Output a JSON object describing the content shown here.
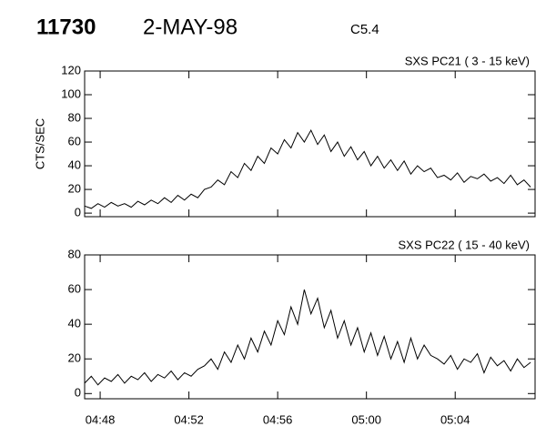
{
  "header": {
    "id": "11730",
    "date": "2-MAY-98",
    "class": "C5.4"
  },
  "chart_data": [
    {
      "type": "line",
      "title": "SXS PC21  (  3 - 15 keV)",
      "ylabel": "CTS/SEC",
      "color": "#000000",
      "x": [
        47.3,
        47.6,
        47.9,
        48.2,
        48.5,
        48.8,
        49.1,
        49.4,
        49.7,
        50.0,
        50.3,
        50.6,
        50.9,
        51.2,
        51.5,
        51.8,
        52.1,
        52.4,
        52.7,
        53.0,
        53.3,
        53.6,
        53.9,
        54.2,
        54.5,
        54.8,
        55.1,
        55.4,
        55.7,
        56.0,
        56.3,
        56.6,
        56.9,
        57.2,
        57.5,
        57.8,
        58.1,
        58.4,
        58.7,
        59.0,
        59.3,
        59.6,
        59.9,
        60.2,
        60.5,
        60.8,
        61.1,
        61.4,
        61.7,
        62.0,
        62.3,
        62.6,
        62.9,
        63.2,
        63.5,
        63.8,
        64.1,
        64.4,
        64.7,
        65.0,
        65.3,
        65.6,
        65.9,
        66.2,
        66.5,
        66.8,
        67.1,
        67.4
      ],
      "values": [
        6,
        4,
        8,
        5,
        9,
        6,
        8,
        5,
        10,
        7,
        11,
        8,
        13,
        9,
        15,
        11,
        16,
        13,
        20,
        22,
        28,
        24,
        35,
        30,
        42,
        36,
        48,
        42,
        55,
        50,
        62,
        55,
        68,
        60,
        70,
        58,
        66,
        52,
        60,
        48,
        56,
        45,
        52,
        40,
        48,
        38,
        45,
        36,
        44,
        33,
        40,
        35,
        38,
        30,
        32,
        28,
        34,
        26,
        31,
        29,
        33,
        27,
        30,
        25,
        32,
        24,
        28,
        22
      ],
      "xlim": [
        47.3,
        67.6
      ],
      "ylim": [
        -3,
        120
      ],
      "xticks": [
        48,
        52,
        56,
        60,
        64
      ],
      "yticks": [
        0,
        20,
        40,
        60,
        80,
        100,
        120
      ]
    },
    {
      "type": "line",
      "title": "SXS PC22  ( 15 - 40 keV)",
      "color": "#000000",
      "x": [
        47.3,
        47.6,
        47.9,
        48.2,
        48.5,
        48.8,
        49.1,
        49.4,
        49.7,
        50.0,
        50.3,
        50.6,
        50.9,
        51.2,
        51.5,
        51.8,
        52.1,
        52.4,
        52.7,
        53.0,
        53.3,
        53.6,
        53.9,
        54.2,
        54.5,
        54.8,
        55.1,
        55.4,
        55.7,
        56.0,
        56.3,
        56.6,
        56.9,
        57.2,
        57.5,
        57.8,
        58.1,
        58.4,
        58.7,
        59.0,
        59.3,
        59.6,
        59.9,
        60.2,
        60.5,
        60.8,
        61.1,
        61.4,
        61.7,
        62.0,
        62.3,
        62.6,
        62.9,
        63.2,
        63.5,
        63.8,
        64.1,
        64.4,
        64.7,
        65.0,
        65.3,
        65.6,
        65.9,
        66.2,
        66.5,
        66.8,
        67.1,
        67.4
      ],
      "values": [
        6,
        10,
        5,
        9,
        7,
        11,
        6,
        10,
        8,
        12,
        7,
        11,
        9,
        13,
        8,
        12,
        10,
        14,
        16,
        20,
        14,
        24,
        18,
        28,
        20,
        32,
        24,
        36,
        28,
        42,
        34,
        50,
        40,
        60,
        46,
        55,
        38,
        48,
        32,
        42,
        28,
        38,
        24,
        35,
        22,
        33,
        20,
        30,
        18,
        32,
        20,
        28,
        22,
        20,
        17,
        22,
        14,
        20,
        18,
        23,
        12,
        21,
        16,
        19,
        13,
        20,
        15,
        18
      ],
      "xlim": [
        47.3,
        67.6
      ],
      "ylim": [
        -3,
        80
      ],
      "xticks": [
        {
          "value": 48,
          "label": "04:48"
        },
        {
          "value": 52,
          "label": "04:52"
        },
        {
          "value": 56,
          "label": "04:56"
        },
        {
          "value": 60,
          "label": "05:00"
        },
        {
          "value": 64,
          "label": "05:04"
        }
      ],
      "yticks": [
        0,
        20,
        40,
        60,
        80
      ]
    }
  ]
}
